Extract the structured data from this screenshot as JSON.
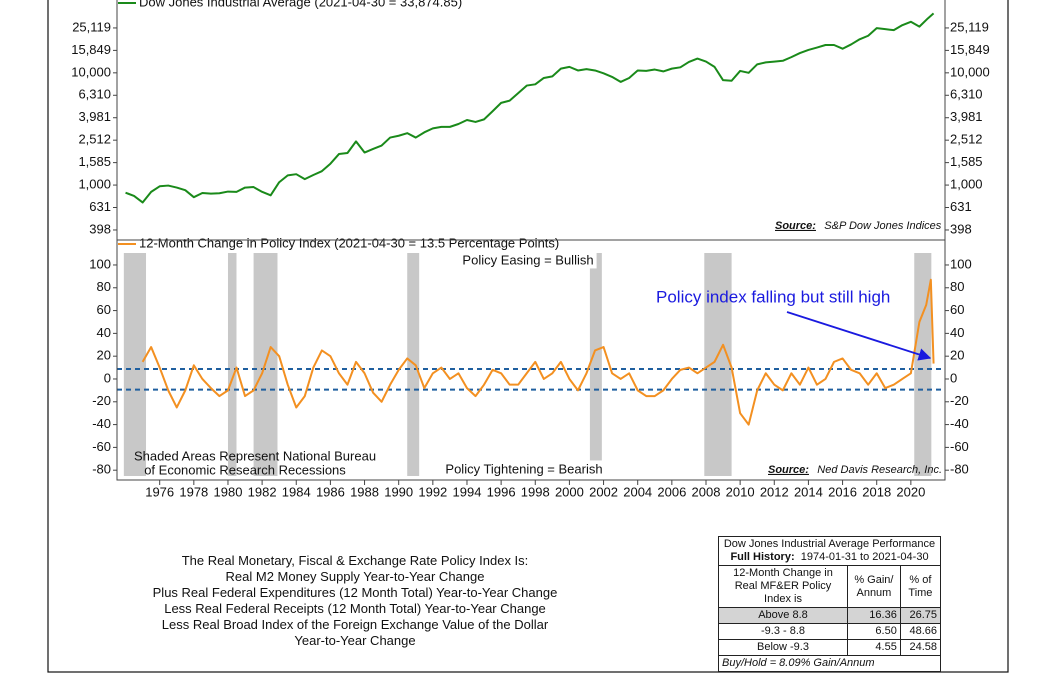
{
  "chart_data": [
    {
      "type": "line",
      "log_scale": true,
      "xlim": [
        1973.5,
        2022
      ],
      "ylim": [
        324,
        44560
      ],
      "yticks": [
        {
          "value": 25119,
          "label": "25,119"
        },
        {
          "value": 15849,
          "label": "15,849"
        },
        {
          "value": 10000,
          "label": "10,000"
        },
        {
          "value": 6310,
          "label": "6,310"
        },
        {
          "value": 3981,
          "label": "3,981"
        },
        {
          "value": 2512,
          "label": "2,512"
        },
        {
          "value": 1585,
          "label": "1,585"
        },
        {
          "value": 1000,
          "label": "1,000"
        },
        631,
        398
      ],
      "source_label": "Source:",
      "source": "S&P Dow Jones Indices",
      "x": [
        1974,
        1974.5,
        1975,
        1975.5,
        1976,
        1976.5,
        1977,
        1977.5,
        1978,
        1978.5,
        1979,
        1979.5,
        1980,
        1980.5,
        1981,
        1981.5,
        1982,
        1982.5,
        1983,
        1983.5,
        1984,
        1984.5,
        1985,
        1985.5,
        1986,
        1986.5,
        1987,
        1987.5,
        1988,
        1988.5,
        1989,
        1989.5,
        1990,
        1990.5,
        1991,
        1991.5,
        1992,
        1992.5,
        1993,
        1993.5,
        1994,
        1994.5,
        1995,
        1995.5,
        1996,
        1996.5,
        1997,
        1997.5,
        1998,
        1998.5,
        1999,
        1999.5,
        2000,
        2000.5,
        2001,
        2001.5,
        2002,
        2002.5,
        2003,
        2003.5,
        2004,
        2004.5,
        2005,
        2005.5,
        2006,
        2006.5,
        2007,
        2007.5,
        2008,
        2008.5,
        2009,
        2009.5,
        2010,
        2010.5,
        2011,
        2011.5,
        2012,
        2012.5,
        2013,
        2013.5,
        2014,
        2014.5,
        2015,
        2015.5,
        2016,
        2016.5,
        2017,
        2017.5,
        2018,
        2018.5,
        2019,
        2019.5,
        2020,
        2020.5,
        2021,
        2021.33
      ],
      "series": [
        {
          "name": "Dow Jones Industrial Average (2021-04-30 = 33,874.85)",
          "color": "#1a8a1a",
          "values": [
            855,
            800,
            700,
            870,
            975,
            990,
            950,
            900,
            780,
            850,
            840,
            845,
            875,
            870,
            950,
            960,
            870,
            810,
            1060,
            1220,
            1250,
            1130,
            1230,
            1330,
            1550,
            1890,
            1930,
            2450,
            1950,
            2100,
            2250,
            2650,
            2750,
            2900,
            2650,
            2950,
            3200,
            3300,
            3300,
            3500,
            3800,
            3650,
            3850,
            4550,
            5400,
            5650,
            6600,
            7700,
            7900,
            9000,
            9300,
            10900,
            11300,
            10500,
            10800,
            10500,
            9900,
            9200,
            8300,
            9000,
            10500,
            10400,
            10700,
            10300,
            10900,
            11200,
            12500,
            13400,
            12600,
            11300,
            8600,
            8500,
            10400,
            10000,
            11900,
            12400,
            12600,
            12800,
            13800,
            15000,
            16000,
            16800,
            17700,
            17700,
            16400,
            17900,
            19900,
            21400,
            25000,
            24500,
            24000,
            26600,
            28500,
            25800,
            30600,
            33874.85
          ]
        }
      ]
    },
    {
      "type": "line",
      "xlim": [
        1973.5,
        2022
      ],
      "ylim": [
        -88.6,
        121.9
      ],
      "yticks": [
        100,
        80,
        60,
        40,
        20,
        0,
        -20,
        -40,
        -60,
        -80
      ],
      "xticks": [
        1976,
        1978,
        1980,
        1982,
        1984,
        1986,
        1988,
        1990,
        1992,
        1994,
        1996,
        1998,
        2000,
        2002,
        2004,
        2006,
        2008,
        2010,
        2012,
        2014,
        2016,
        2018,
        2020
      ],
      "reference_lines": [
        8.8,
        -9.3
      ],
      "recessions": [
        [
          1973.9,
          1975.2
        ],
        [
          1980.0,
          1980.5
        ],
        [
          1981.5,
          1982.9
        ],
        [
          1990.5,
          1991.2
        ],
        [
          2001.2,
          2001.9
        ],
        [
          2007.9,
          2009.5
        ],
        [
          2020.2,
          2021.2
        ]
      ],
      "annotations": [
        "Policy Easing = Bullish",
        "Policy Tightening = Bearish",
        "Shaded Areas Represent National Bureau",
        "of Economic Research Recessions",
        "Policy index falling but still high"
      ],
      "source_label": "Source:",
      "source": "Ned Davis Research, Inc.",
      "x": [
        1975,
        1975.5,
        1976,
        1976.5,
        1977,
        1977.5,
        1978,
        1978.5,
        1979,
        1979.5,
        1980,
        1980.5,
        1981,
        1981.5,
        1982,
        1982.5,
        1983,
        1983.5,
        1984,
        1984.5,
        1985,
        1985.5,
        1986,
        1986.5,
        1987,
        1987.5,
        1988,
        1988.5,
        1989,
        1989.5,
        1990,
        1990.5,
        1991,
        1991.5,
        1992,
        1992.5,
        1993,
        1993.5,
        1994,
        1994.5,
        1995,
        1995.5,
        1996,
        1996.5,
        1997,
        1997.5,
        1998,
        1998.5,
        1999,
        1999.5,
        2000,
        2000.5,
        2001,
        2001.5,
        2002,
        2002.5,
        2003,
        2003.5,
        2004,
        2004.5,
        2005,
        2005.5,
        2006,
        2006.5,
        2007,
        2007.5,
        2008,
        2008.5,
        2009,
        2009.5,
        2010,
        2010.5,
        2011,
        2011.5,
        2012,
        2012.5,
        2013,
        2013.5,
        2014,
        2014.5,
        2015,
        2015.5,
        2016,
        2016.5,
        2017,
        2017.5,
        2018,
        2018.5,
        2019,
        2019.5,
        2020,
        2020.5,
        2020.9,
        2021.17,
        2021.33
      ],
      "series": [
        {
          "name": "12-Month Change in Policy Index (2021-04-30 = 13.5 Percentage Points)",
          "color": "#f39021",
          "values": [
            15,
            28,
            10,
            -10,
            -25,
            -10,
            12,
            0,
            -8,
            -15,
            -10,
            10,
            -15,
            -10,
            5,
            28,
            20,
            -5,
            -25,
            -15,
            10,
            25,
            20,
            5,
            -5,
            15,
            5,
            -12,
            -20,
            -5,
            8,
            18,
            12,
            -8,
            5,
            10,
            0,
            5,
            -8,
            -15,
            -5,
            8,
            5,
            -5,
            -5,
            5,
            15,
            0,
            5,
            15,
            0,
            -10,
            5,
            25,
            28,
            5,
            0,
            5,
            -10,
            -15,
            -15,
            -10,
            0,
            8,
            10,
            5,
            10,
            15,
            30,
            10,
            -30,
            -40,
            -10,
            5,
            -5,
            -10,
            5,
            -5,
            10,
            -5,
            0,
            15,
            18,
            8,
            5,
            -5,
            5,
            -8,
            -5,
            0,
            5,
            50,
            65,
            87,
            13.5
          ]
        }
      ]
    }
  ],
  "notes": {
    "lines": [
      "The Real Monetary, Fiscal & Exchange Rate Policy Index Is:",
      "Real M2 Money Supply Year-to-Year Change",
      "Plus Real Federal Expenditures (12 Month Total) Year-to-Year Change",
      "Less Real Federal Receipts (12 Month Total) Year-to-Year Change",
      "Less Real Broad Index of the Foreign Exchange Value of the Dollar",
      "Year-to-Year Change"
    ]
  },
  "table": {
    "title": "Dow Jones Industrial Average Performance",
    "subtitle_label": "Full History:",
    "subtitle": "1974-01-31 to 2021-04-30",
    "headers": [
      "12-Month Change in Real MF&ER Policy Index is",
      "% Gain/ Annum",
      "% of Time"
    ],
    "rows": [
      [
        "Above 8.8",
        "16.36",
        "26.75"
      ],
      [
        "-9.3 - 8.8",
        "6.50",
        "48.66"
      ],
      [
        "Below -9.3",
        "4.55",
        "24.58"
      ]
    ],
    "footer": "Buy/Hold = 8.09% Gain/Annum"
  }
}
